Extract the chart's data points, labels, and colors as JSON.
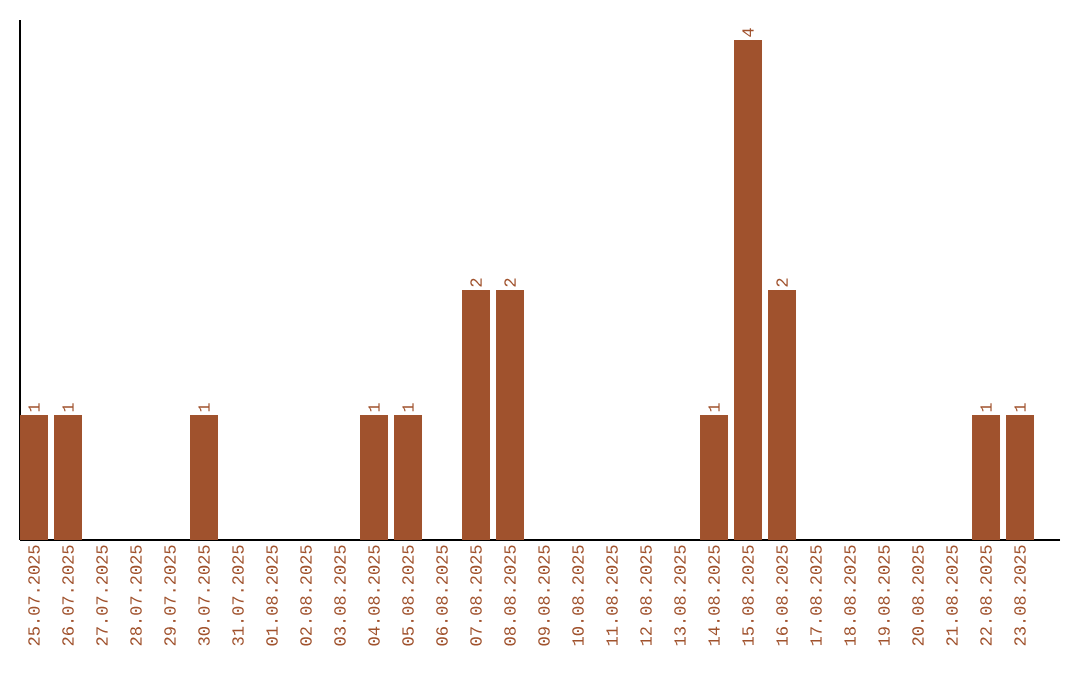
{
  "chart_data": {
    "type": "bar",
    "categories": [
      "25.07.2025",
      "26.07.2025",
      "27.07.2025",
      "28.07.2025",
      "29.07.2025",
      "30.07.2025",
      "31.07.2025",
      "01.08.2025",
      "02.08.2025",
      "03.08.2025",
      "04.08.2025",
      "05.08.2025",
      "06.08.2025",
      "07.08.2025",
      "08.08.2025",
      "09.08.2025",
      "10.08.2025",
      "11.08.2025",
      "12.08.2025",
      "13.08.2025",
      "14.08.2025",
      "15.08.2025",
      "16.08.2025",
      "17.08.2025",
      "18.08.2025",
      "19.08.2025",
      "20.08.2025",
      "21.08.2025",
      "22.08.2025",
      "23.08.2025"
    ],
    "values": [
      1,
      1,
      0,
      0,
      0,
      1,
      0,
      0,
      0,
      0,
      1,
      1,
      0,
      2,
      2,
      0,
      0,
      0,
      0,
      0,
      1,
      4,
      2,
      0,
      0,
      0,
      0,
      0,
      1,
      1
    ],
    "value_labels": [
      "1",
      "1",
      null,
      null,
      null,
      "1",
      null,
      null,
      null,
      null,
      "1",
      "1",
      null,
      "2",
      "2",
      null,
      null,
      null,
      null,
      null,
      "1",
      "4",
      "2",
      null,
      null,
      null,
      null,
      null,
      "1",
      "1"
    ],
    "color": "#a0522d",
    "grid": false
  }
}
